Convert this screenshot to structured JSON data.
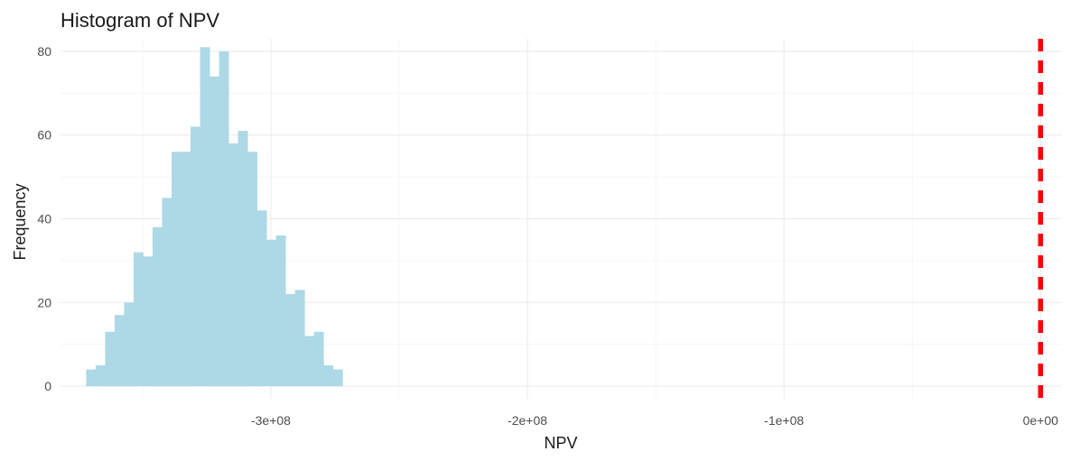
{
  "chart_data": {
    "type": "bar",
    "title": "Histogram of NPV",
    "xlabel": "NPV",
    "ylabel": "Frequency",
    "xlim": [
      -382000000,
      8000000
    ],
    "ylim": [
      -3,
      83
    ],
    "x_ticks": [
      {
        "value": -300000000,
        "label": "-3e+08"
      },
      {
        "value": -200000000,
        "label": "-2e+08"
      },
      {
        "value": -100000000,
        "label": "-1e+08"
      },
      {
        "value": 0,
        "label": "0e+00"
      }
    ],
    "y_ticks": [
      {
        "value": 0,
        "label": "0"
      },
      {
        "value": 20,
        "label": "20"
      },
      {
        "value": 40,
        "label": "40"
      },
      {
        "value": 60,
        "label": "60"
      },
      {
        "value": 80,
        "label": "80"
      }
    ],
    "bin_width": 3700000,
    "bins": [
      {
        "x_start": -372000000,
        "count": 4
      },
      {
        "x_start": -368300000,
        "count": 5
      },
      {
        "x_start": -364600000,
        "count": 13
      },
      {
        "x_start": -360900000,
        "count": 17
      },
      {
        "x_start": -357200000,
        "count": 20
      },
      {
        "x_start": -353500000,
        "count": 32
      },
      {
        "x_start": -349800000,
        "count": 31
      },
      {
        "x_start": -346100000,
        "count": 38
      },
      {
        "x_start": -342400000,
        "count": 45
      },
      {
        "x_start": -338700000,
        "count": 56
      },
      {
        "x_start": -335000000,
        "count": 56
      },
      {
        "x_start": -331300000,
        "count": 62
      },
      {
        "x_start": -327600000,
        "count": 81
      },
      {
        "x_start": -323900000,
        "count": 74
      },
      {
        "x_start": -320200000,
        "count": 80
      },
      {
        "x_start": -316500000,
        "count": 58
      },
      {
        "x_start": -312800000,
        "count": 61
      },
      {
        "x_start": -309100000,
        "count": 56
      },
      {
        "x_start": -305400000,
        "count": 42
      },
      {
        "x_start": -301700000,
        "count": 35
      },
      {
        "x_start": -298000000,
        "count": 36
      },
      {
        "x_start": -294300000,
        "count": 22
      },
      {
        "x_start": -290600000,
        "count": 23
      },
      {
        "x_start": -286900000,
        "count": 12
      },
      {
        "x_start": -283200000,
        "count": 13
      },
      {
        "x_start": -279500000,
        "count": 5
      },
      {
        "x_start": -275800000,
        "count": 4
      }
    ],
    "bar_color": "#add8e6",
    "reference_line": {
      "x": 0,
      "color": "#ff0000",
      "style": "dashed"
    },
    "grid": true
  }
}
